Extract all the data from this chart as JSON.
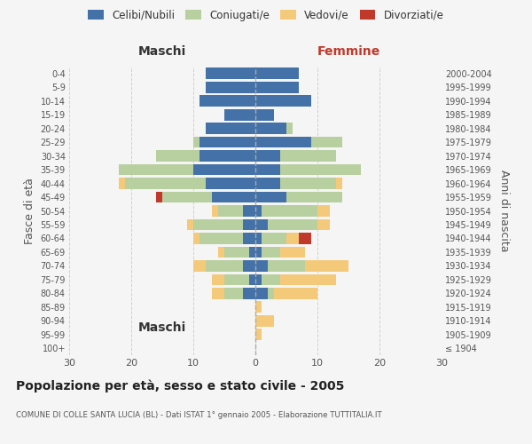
{
  "age_groups": [
    "100+",
    "95-99",
    "90-94",
    "85-89",
    "80-84",
    "75-79",
    "70-74",
    "65-69",
    "60-64",
    "55-59",
    "50-54",
    "45-49",
    "40-44",
    "35-39",
    "30-34",
    "25-29",
    "20-24",
    "15-19",
    "10-14",
    "5-9",
    "0-4"
  ],
  "birth_years": [
    "≤ 1904",
    "1905-1909",
    "1910-1914",
    "1915-1919",
    "1920-1924",
    "1925-1929",
    "1930-1934",
    "1935-1939",
    "1940-1944",
    "1945-1949",
    "1950-1954",
    "1955-1959",
    "1960-1964",
    "1965-1969",
    "1970-1974",
    "1975-1979",
    "1980-1984",
    "1985-1989",
    "1990-1994",
    "1995-1999",
    "2000-2004"
  ],
  "maschi": {
    "celibi": [
      0,
      0,
      0,
      0,
      2,
      1,
      2,
      1,
      2,
      2,
      2,
      7,
      8,
      10,
      9,
      9,
      8,
      5,
      9,
      8,
      8
    ],
    "coniugati": [
      0,
      0,
      0,
      0,
      3,
      4,
      6,
      4,
      7,
      8,
      4,
      8,
      13,
      12,
      7,
      1,
      0,
      0,
      0,
      0,
      0
    ],
    "vedovi": [
      0,
      0,
      0,
      0,
      2,
      2,
      2,
      1,
      1,
      1,
      1,
      0,
      1,
      0,
      0,
      0,
      0,
      0,
      0,
      0,
      0
    ],
    "divorziati": [
      0,
      0,
      0,
      0,
      0,
      0,
      0,
      0,
      0,
      0,
      0,
      1,
      0,
      0,
      0,
      0,
      0,
      0,
      0,
      0,
      0
    ]
  },
  "femmine": {
    "nubili": [
      0,
      0,
      0,
      0,
      2,
      1,
      2,
      1,
      1,
      2,
      1,
      5,
      4,
      4,
      4,
      9,
      5,
      3,
      9,
      7,
      7
    ],
    "coniugate": [
      0,
      0,
      0,
      0,
      1,
      3,
      6,
      3,
      4,
      8,
      9,
      9,
      9,
      13,
      9,
      5,
      1,
      0,
      0,
      0,
      0
    ],
    "vedove": [
      0,
      1,
      3,
      1,
      7,
      9,
      7,
      4,
      2,
      2,
      2,
      0,
      1,
      0,
      0,
      0,
      0,
      0,
      0,
      0,
      0
    ],
    "divorziate": [
      0,
      0,
      0,
      0,
      0,
      0,
      0,
      0,
      2,
      0,
      0,
      0,
      0,
      0,
      0,
      0,
      0,
      0,
      0,
      0,
      0
    ]
  },
  "colors": {
    "celibi_nubili": "#4472a8",
    "coniugati": "#b8cfa0",
    "vedovi": "#f5c97a",
    "divorziati": "#c0392b"
  },
  "xlim": 30,
  "title": "Popolazione per età, sesso e stato civile - 2005",
  "subtitle": "COMUNE DI COLLE SANTA LUCIA (BL) - Dati ISTAT 1° gennaio 2005 - Elaborazione TUTTITALIA.IT",
  "ylabel_left": "Fasce di età",
  "ylabel_right": "Anni di nascita",
  "xlabel_left": "Maschi",
  "xlabel_right": "Femmine",
  "bg_color": "#f5f5f5",
  "grid_color": "#cccccc"
}
